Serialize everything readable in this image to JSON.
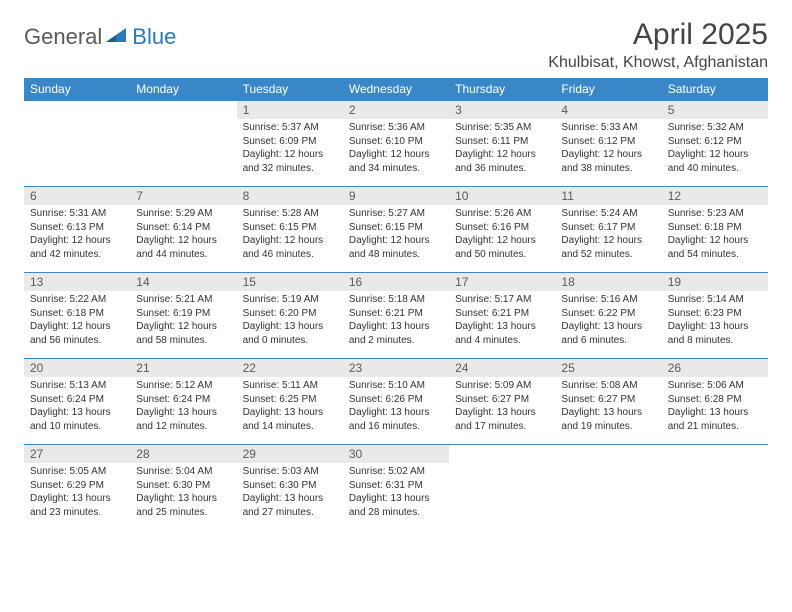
{
  "brand": {
    "part1": "General",
    "part2": "Blue"
  },
  "title": "April 2025",
  "location": "Khulbisat, Khowst, Afghanistan",
  "colors": {
    "header_bg": "#3a87c8",
    "header_fg": "#ffffff",
    "daynum_bg": "#e9e9e9",
    "rule": "#3a87c8",
    "brand_gray": "#5a5a5a",
    "brand_blue": "#2a7ab8"
  },
  "typography": {
    "title_fontsize": 30,
    "location_fontsize": 16,
    "weekday_fontsize": 12,
    "daynum_fontsize": 12,
    "body_fontsize": 10
  },
  "weekdays": [
    "Sunday",
    "Monday",
    "Tuesday",
    "Wednesday",
    "Thursday",
    "Friday",
    "Saturday"
  ],
  "layout": {
    "columns": 7,
    "rows": 5,
    "leading_blanks": 2,
    "trailing_blanks": 3
  },
  "days": [
    {
      "n": 1,
      "sr": "5:37 AM",
      "ss": "6:09 PM",
      "dl": "12 hours and 32 minutes."
    },
    {
      "n": 2,
      "sr": "5:36 AM",
      "ss": "6:10 PM",
      "dl": "12 hours and 34 minutes."
    },
    {
      "n": 3,
      "sr": "5:35 AM",
      "ss": "6:11 PM",
      "dl": "12 hours and 36 minutes."
    },
    {
      "n": 4,
      "sr": "5:33 AM",
      "ss": "6:12 PM",
      "dl": "12 hours and 38 minutes."
    },
    {
      "n": 5,
      "sr": "5:32 AM",
      "ss": "6:12 PM",
      "dl": "12 hours and 40 minutes."
    },
    {
      "n": 6,
      "sr": "5:31 AM",
      "ss": "6:13 PM",
      "dl": "12 hours and 42 minutes."
    },
    {
      "n": 7,
      "sr": "5:29 AM",
      "ss": "6:14 PM",
      "dl": "12 hours and 44 minutes."
    },
    {
      "n": 8,
      "sr": "5:28 AM",
      "ss": "6:15 PM",
      "dl": "12 hours and 46 minutes."
    },
    {
      "n": 9,
      "sr": "5:27 AM",
      "ss": "6:15 PM",
      "dl": "12 hours and 48 minutes."
    },
    {
      "n": 10,
      "sr": "5:26 AM",
      "ss": "6:16 PM",
      "dl": "12 hours and 50 minutes."
    },
    {
      "n": 11,
      "sr": "5:24 AM",
      "ss": "6:17 PM",
      "dl": "12 hours and 52 minutes."
    },
    {
      "n": 12,
      "sr": "5:23 AM",
      "ss": "6:18 PM",
      "dl": "12 hours and 54 minutes."
    },
    {
      "n": 13,
      "sr": "5:22 AM",
      "ss": "6:18 PM",
      "dl": "12 hours and 56 minutes."
    },
    {
      "n": 14,
      "sr": "5:21 AM",
      "ss": "6:19 PM",
      "dl": "12 hours and 58 minutes."
    },
    {
      "n": 15,
      "sr": "5:19 AM",
      "ss": "6:20 PM",
      "dl": "13 hours and 0 minutes."
    },
    {
      "n": 16,
      "sr": "5:18 AM",
      "ss": "6:21 PM",
      "dl": "13 hours and 2 minutes."
    },
    {
      "n": 17,
      "sr": "5:17 AM",
      "ss": "6:21 PM",
      "dl": "13 hours and 4 minutes."
    },
    {
      "n": 18,
      "sr": "5:16 AM",
      "ss": "6:22 PM",
      "dl": "13 hours and 6 minutes."
    },
    {
      "n": 19,
      "sr": "5:14 AM",
      "ss": "6:23 PM",
      "dl": "13 hours and 8 minutes."
    },
    {
      "n": 20,
      "sr": "5:13 AM",
      "ss": "6:24 PM",
      "dl": "13 hours and 10 minutes."
    },
    {
      "n": 21,
      "sr": "5:12 AM",
      "ss": "6:24 PM",
      "dl": "13 hours and 12 minutes."
    },
    {
      "n": 22,
      "sr": "5:11 AM",
      "ss": "6:25 PM",
      "dl": "13 hours and 14 minutes."
    },
    {
      "n": 23,
      "sr": "5:10 AM",
      "ss": "6:26 PM",
      "dl": "13 hours and 16 minutes."
    },
    {
      "n": 24,
      "sr": "5:09 AM",
      "ss": "6:27 PM",
      "dl": "13 hours and 17 minutes."
    },
    {
      "n": 25,
      "sr": "5:08 AM",
      "ss": "6:27 PM",
      "dl": "13 hours and 19 minutes."
    },
    {
      "n": 26,
      "sr": "5:06 AM",
      "ss": "6:28 PM",
      "dl": "13 hours and 21 minutes."
    },
    {
      "n": 27,
      "sr": "5:05 AM",
      "ss": "6:29 PM",
      "dl": "13 hours and 23 minutes."
    },
    {
      "n": 28,
      "sr": "5:04 AM",
      "ss": "6:30 PM",
      "dl": "13 hours and 25 minutes."
    },
    {
      "n": 29,
      "sr": "5:03 AM",
      "ss": "6:30 PM",
      "dl": "13 hours and 27 minutes."
    },
    {
      "n": 30,
      "sr": "5:02 AM",
      "ss": "6:31 PM",
      "dl": "13 hours and 28 minutes."
    }
  ],
  "labels": {
    "sunrise": "Sunrise:",
    "sunset": "Sunset:",
    "daylight": "Daylight:"
  }
}
